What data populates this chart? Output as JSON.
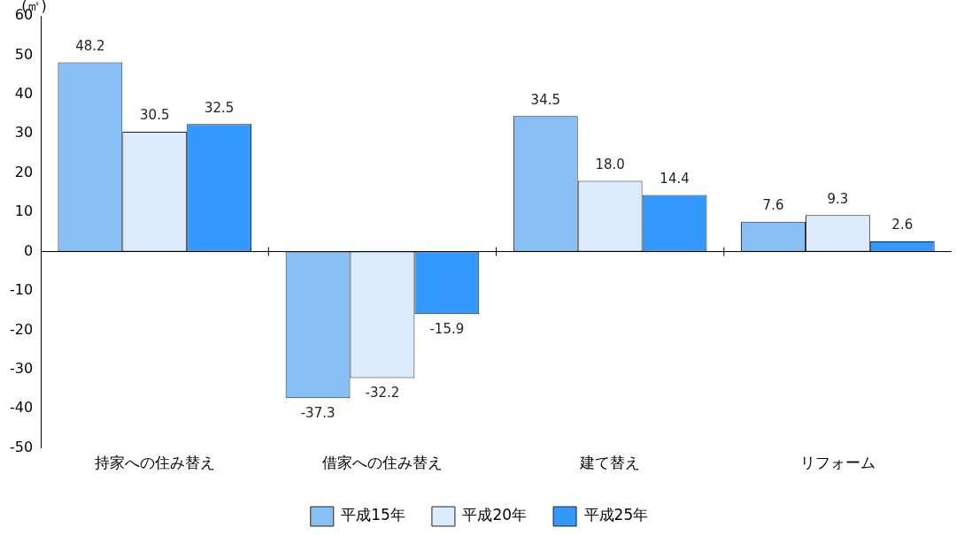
{
  "chart_data": {
    "type": "bar",
    "ylabel": "(㎡)",
    "categories": [
      "持家への住み替え",
      "借家への住み替え",
      "建て替え",
      "リフォーム"
    ],
    "series": [
      {
        "name": "平成15年",
        "color": "#88bff5",
        "values": [
          48.2,
          -37.3,
          34.5,
          7.6
        ],
        "value_labels": [
          "48.2",
          "-37.3",
          "34.5",
          "7.6"
        ]
      },
      {
        "name": "平成20年",
        "color": "#dcebfb",
        "values": [
          30.5,
          -32.2,
          18.0,
          9.3
        ],
        "value_labels": [
          "30.5",
          "-32.2",
          "18.0",
          "9.3"
        ]
      },
      {
        "name": "平成25年",
        "color": "#3399ff",
        "values": [
          32.5,
          -15.9,
          14.4,
          2.6
        ],
        "value_labels": [
          "32.5",
          "-15.9",
          "14.4",
          "2.6"
        ]
      }
    ],
    "ylim": [
      -50,
      60
    ],
    "yticks": [
      -50,
      -40,
      -30,
      -20,
      -10,
      0,
      10,
      20,
      30,
      40,
      50,
      60
    ],
    "grid": false,
    "legend": "bottom",
    "ref_lines": [
      {
        "axis": "y",
        "value": 0,
        "color": "#000000"
      }
    ]
  }
}
